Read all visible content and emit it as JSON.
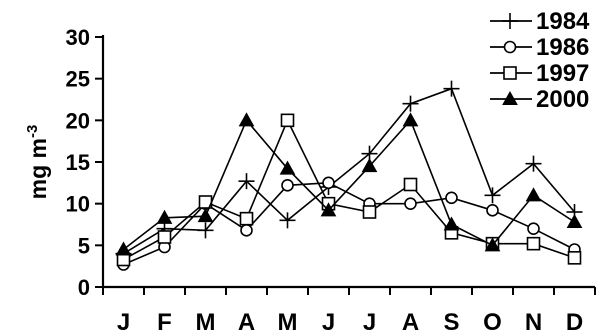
{
  "chart_data": {
    "type": "line",
    "title": "",
    "xlabel": "",
    "ylabel": "mg m",
    "ylabel_superscript": "-3",
    "categories": [
      "J",
      "F",
      "M",
      "A",
      "M",
      "J",
      "J",
      "A",
      "S",
      "O",
      "N",
      "D"
    ],
    "ylim": [
      0,
      30
    ],
    "yticks": [
      0,
      5,
      10,
      15,
      20,
      25,
      30
    ],
    "grid": false,
    "legend_position": "top-right",
    "series": [
      {
        "name": "1984",
        "marker": "plus",
        "values": [
          4.0,
          7.0,
          6.8,
          12.7,
          8.0,
          12.0,
          16.0,
          22.0,
          23.8,
          11.0,
          14.8,
          9.0
        ]
      },
      {
        "name": "1986",
        "marker": "open-circle",
        "values": [
          2.7,
          4.8,
          10.0,
          6.8,
          12.2,
          12.5,
          10.0,
          10.0,
          10.7,
          9.2,
          7.0,
          4.5
        ]
      },
      {
        "name": "1997",
        "marker": "open-square",
        "values": [
          3.3,
          6.0,
          10.2,
          8.2,
          20.0,
          10.0,
          9.0,
          12.3,
          6.5,
          5.2,
          5.2,
          3.5
        ]
      },
      {
        "name": "2000",
        "marker": "filled-triangle",
        "values": [
          4.5,
          8.3,
          8.5,
          20.0,
          14.2,
          9.2,
          14.5,
          20.0,
          7.5,
          5.0,
          11.0,
          7.8
        ]
      }
    ]
  }
}
